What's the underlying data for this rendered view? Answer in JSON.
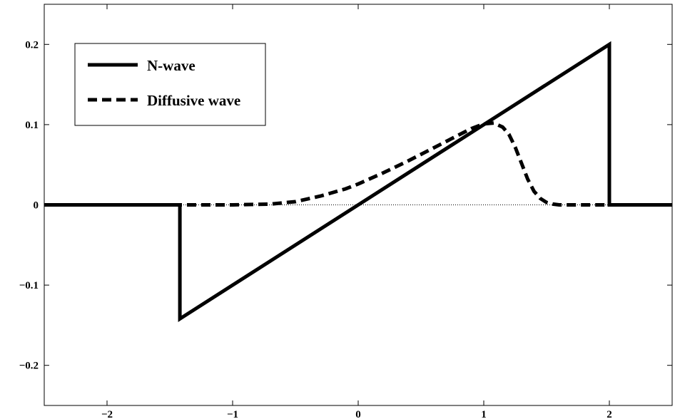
{
  "chart_data": {
    "type": "line",
    "title": "",
    "xlabel": "",
    "ylabel": "",
    "xlim": [
      -2.5,
      2.5
    ],
    "ylim": [
      -0.25,
      0.25
    ],
    "grid": false,
    "legend_position": "top-left",
    "x_ticks": [
      {
        "value": -2,
        "label": "−2"
      },
      {
        "value": -1,
        "label": "−1"
      },
      {
        "value": 0,
        "label": "0"
      },
      {
        "value": 1,
        "label": "1"
      },
      {
        "value": 2,
        "label": "2"
      }
    ],
    "y_ticks": [
      {
        "value": 0.2,
        "label": "0.2"
      },
      {
        "value": 0.1,
        "label": "0.1"
      },
      {
        "value": 0,
        "label": "0"
      },
      {
        "value": -0.1,
        "label": "−0.1"
      },
      {
        "value": -0.2,
        "label": "−0.2"
      }
    ],
    "reference_line": {
      "y": 0,
      "style": "dotted"
    },
    "series": [
      {
        "name": "N-wave",
        "style": "solid",
        "color": "#000000",
        "x": [
          -2.5,
          -1.42,
          -1.42,
          2.0,
          2.0,
          2.5
        ],
        "y": [
          0,
          0,
          -0.142,
          0.2,
          0,
          0
        ]
      },
      {
        "name": "Diffusive wave",
        "style": "dashed",
        "color": "#000000",
        "x": [
          -2.5,
          -1.0,
          -0.7,
          -0.5,
          -0.3,
          -0.1,
          0.0,
          0.2,
          0.4,
          0.6,
          0.8,
          0.9,
          1.0,
          1.08,
          1.15,
          1.2,
          1.25,
          1.3,
          1.35,
          1.4,
          1.45,
          1.5,
          1.55,
          1.6,
          1.7,
          2.5
        ],
        "y": [
          0,
          0,
          0.001,
          0.004,
          0.011,
          0.02,
          0.026,
          0.04,
          0.055,
          0.071,
          0.087,
          0.095,
          0.101,
          0.102,
          0.097,
          0.088,
          0.072,
          0.052,
          0.032,
          0.017,
          0.008,
          0.003,
          0.001,
          0.0,
          0,
          0
        ]
      }
    ]
  }
}
